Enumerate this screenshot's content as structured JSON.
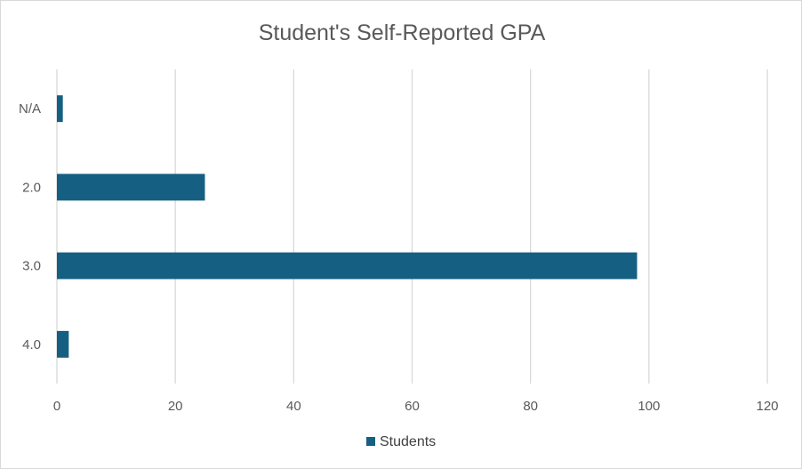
{
  "chart_data": {
    "type": "bar",
    "orientation": "horizontal",
    "title": "Student's Self-Reported GPA",
    "categories": [
      "N/A",
      "2.0",
      "3.0",
      "4.0"
    ],
    "series": [
      {
        "name": "Students",
        "values": [
          1,
          25,
          98,
          2
        ],
        "color": "#156082"
      }
    ],
    "xlim": [
      0,
      120
    ],
    "x_ticks": [
      "0",
      "20",
      "40",
      "60",
      "80",
      "100",
      "120"
    ],
    "grid": true,
    "legend": "bottom",
    "xlabel": "",
    "ylabel": ""
  }
}
